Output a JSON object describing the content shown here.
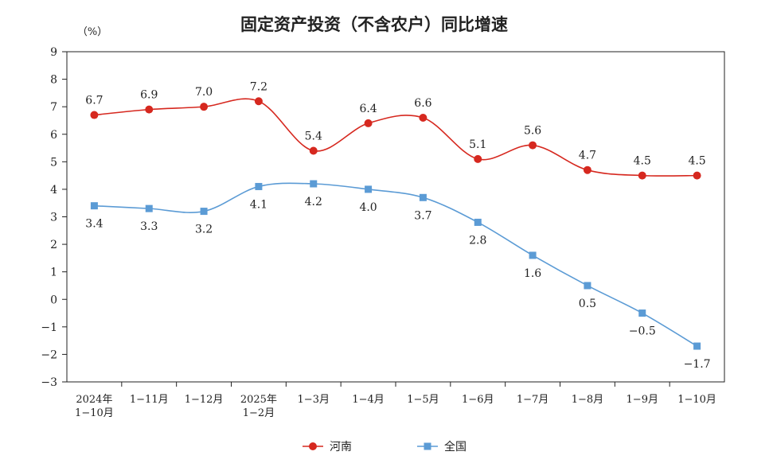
{
  "chart_data": {
    "type": "line",
    "title": "固定资产投资（不含农户）同比增速",
    "unit": "（%）",
    "ylim": [
      -3,
      9
    ],
    "yticks": [
      "9",
      "8",
      "7",
      "6",
      "5",
      "4",
      "3",
      "2",
      "1",
      "0",
      "−1",
      "−2",
      "−3"
    ],
    "categories": [
      [
        "2024年",
        "1−10月"
      ],
      [
        "1−11月"
      ],
      [
        "1−12月"
      ],
      [
        "2025年",
        "1−2月"
      ],
      [
        "1−3月"
      ],
      [
        "1−4月"
      ],
      [
        "1−5月"
      ],
      [
        "1−6月"
      ],
      [
        "1−7月"
      ],
      [
        "1−8月"
      ],
      [
        "1−9月"
      ],
      [
        "1−10月"
      ]
    ],
    "series": [
      {
        "name": "河南",
        "color": "#d6281f",
        "marker": "circle",
        "values": [
          6.7,
          6.9,
          7.0,
          7.2,
          5.4,
          6.4,
          6.6,
          5.1,
          5.6,
          4.7,
          4.5,
          4.5
        ],
        "labels": [
          "6.7",
          "6.9",
          "7.0",
          "7.2",
          "5.4",
          "6.4",
          "6.6",
          "5.1",
          "5.6",
          "4.7",
          "4.5",
          "4.5"
        ]
      },
      {
        "name": "全国",
        "color": "#5b9bd5",
        "marker": "square",
        "values": [
          3.4,
          3.3,
          3.2,
          4.1,
          4.2,
          4.0,
          3.7,
          2.8,
          1.6,
          0.5,
          -0.5,
          -1.7
        ],
        "labels": [
          "3.4",
          "3.3",
          "3.2",
          "4.1",
          "4.2",
          "4.0",
          "3.7",
          "2.8",
          "1.6",
          "0.5",
          "−0.5",
          "−1.7"
        ]
      }
    ],
    "legend": {
      "position": "bottom"
    },
    "grid": false
  }
}
